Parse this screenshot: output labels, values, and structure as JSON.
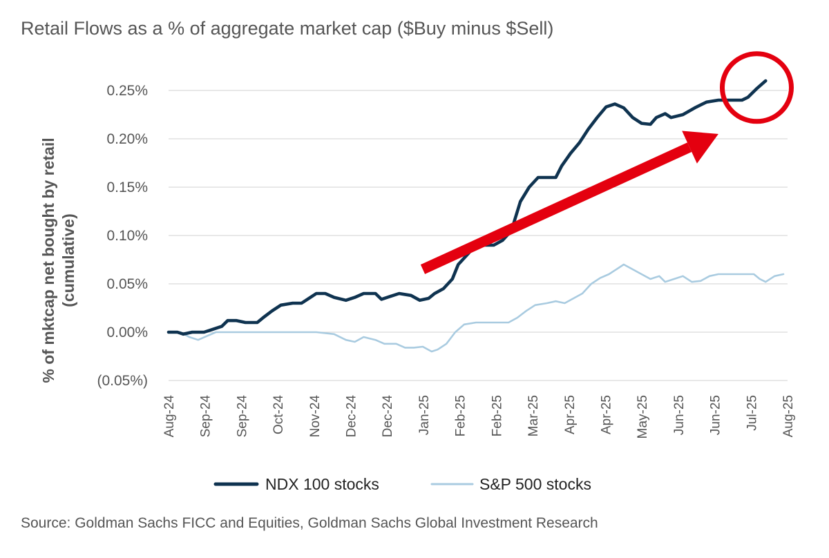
{
  "chart_data": {
    "type": "line",
    "title": "Retail Flows as a % of aggregate market cap ($Buy minus $Sell)",
    "ylabel_line1": "% of mktcap net bought  by retail",
    "ylabel_line2": "(cumulative)",
    "source": "Source: Goldman Sachs FICC and Equities, Goldman Sachs Global Investment Research",
    "ylim": [
      -0.05,
      0.25
    ],
    "yticks": [
      {
        "value": 0.25,
        "label": "0.25%"
      },
      {
        "value": 0.2,
        "label": "0.20%"
      },
      {
        "value": 0.15,
        "label": "0.15%"
      },
      {
        "value": 0.1,
        "label": "0.10%"
      },
      {
        "value": 0.05,
        "label": "0.05%"
      },
      {
        "value": 0.0,
        "label": "0.00%"
      },
      {
        "value": -0.05,
        "label": "(0.05%)"
      }
    ],
    "xtick_labels": [
      "Aug-24",
      "Sep-24",
      "Sep-24",
      "Oct-24",
      "Nov-24",
      "Dec-24",
      "Dec-24",
      "Jan-25",
      "Feb-25",
      "Feb-25",
      "Mar-25",
      "Apr-25",
      "Apr-25",
      "May-25",
      "Jun-25",
      "Jun-25",
      "Jul-25",
      "Aug-25"
    ],
    "x_max": 17,
    "grid": true,
    "legend_position": "bottom",
    "series": [
      {
        "name": "NDX 100 stocks",
        "color": "#0f3350",
        "points": [
          [
            0,
            0.0
          ],
          [
            0.3,
            0.0
          ],
          [
            0.5,
            -0.002
          ],
          [
            0.8,
            0.0
          ],
          [
            1.2,
            0.0
          ],
          [
            1.5,
            0.003
          ],
          [
            1.8,
            0.006
          ],
          [
            2.0,
            0.012
          ],
          [
            2.3,
            0.012
          ],
          [
            2.6,
            0.01
          ],
          [
            3.0,
            0.01
          ],
          [
            3.2,
            0.015
          ],
          [
            3.5,
            0.022
          ],
          [
            3.8,
            0.028
          ],
          [
            4.2,
            0.03
          ],
          [
            4.5,
            0.03
          ],
          [
            4.8,
            0.036
          ],
          [
            5.0,
            0.04
          ],
          [
            5.3,
            0.04
          ],
          [
            5.6,
            0.036
          ],
          [
            6.0,
            0.033
          ],
          [
            6.3,
            0.036
          ],
          [
            6.6,
            0.04
          ],
          [
            7.0,
            0.04
          ],
          [
            7.2,
            0.034
          ],
          [
            7.5,
            0.037
          ],
          [
            7.8,
            0.04
          ],
          [
            8.2,
            0.038
          ],
          [
            8.5,
            0.033
          ],
          [
            8.8,
            0.035
          ],
          [
            9.0,
            0.04
          ],
          [
            9.3,
            0.045
          ],
          [
            9.6,
            0.055
          ],
          [
            9.8,
            0.07
          ],
          [
            10.1,
            0.08
          ],
          [
            10.3,
            0.087
          ],
          [
            10.6,
            0.09
          ],
          [
            11.0,
            0.09
          ],
          [
            11.3,
            0.095
          ],
          [
            11.6,
            0.105
          ],
          [
            11.9,
            0.135
          ],
          [
            12.2,
            0.15
          ],
          [
            12.5,
            0.16
          ],
          [
            12.8,
            0.16
          ],
          [
            13.1,
            0.16
          ],
          [
            13.3,
            0.172
          ],
          [
            13.6,
            0.185
          ],
          [
            13.9,
            0.196
          ],
          [
            14.2,
            0.21
          ],
          [
            14.5,
            0.222
          ],
          [
            14.8,
            0.233
          ],
          [
            15.1,
            0.236
          ],
          [
            15.4,
            0.232
          ],
          [
            15.7,
            0.222
          ],
          [
            16.0,
            0.216
          ],
          [
            16.3,
            0.215
          ],
          [
            16.5,
            0.222
          ],
          [
            16.8,
            0.226
          ],
          [
            17.0,
            0.222
          ],
          [
            17.4,
            0.225
          ],
          [
            17.8,
            0.232
          ],
          [
            18.2,
            0.238
          ],
          [
            18.6,
            0.24
          ],
          [
            19.0,
            0.24
          ],
          [
            19.4,
            0.24
          ],
          [
            19.6,
            0.243
          ],
          [
            19.9,
            0.252
          ],
          [
            20.2,
            0.26
          ]
        ]
      },
      {
        "name": "S&P 500 stocks",
        "color": "#a9cbe0",
        "points": [
          [
            0,
            0.0
          ],
          [
            0.4,
            0.0
          ],
          [
            0.7,
            -0.005
          ],
          [
            1.0,
            -0.008
          ],
          [
            1.3,
            -0.004
          ],
          [
            1.6,
            0.0
          ],
          [
            2.0,
            0.0
          ],
          [
            3.0,
            0.0
          ],
          [
            4.0,
            0.0
          ],
          [
            5.0,
            0.0
          ],
          [
            5.6,
            -0.002
          ],
          [
            6.0,
            -0.008
          ],
          [
            6.3,
            -0.01
          ],
          [
            6.6,
            -0.005
          ],
          [
            7.0,
            -0.008
          ],
          [
            7.3,
            -0.012
          ],
          [
            7.7,
            -0.012
          ],
          [
            8.0,
            -0.016
          ],
          [
            8.3,
            -0.016
          ],
          [
            8.6,
            -0.015
          ],
          [
            8.9,
            -0.02
          ],
          [
            9.1,
            -0.018
          ],
          [
            9.4,
            -0.012
          ],
          [
            9.7,
            0.0
          ],
          [
            10.0,
            0.008
          ],
          [
            10.4,
            0.01
          ],
          [
            11.0,
            0.01
          ],
          [
            11.5,
            0.01
          ],
          [
            11.8,
            0.015
          ],
          [
            12.1,
            0.022
          ],
          [
            12.4,
            0.028
          ],
          [
            12.8,
            0.03
          ],
          [
            13.1,
            0.032
          ],
          [
            13.4,
            0.03
          ],
          [
            13.7,
            0.035
          ],
          [
            14.0,
            0.04
          ],
          [
            14.3,
            0.05
          ],
          [
            14.6,
            0.056
          ],
          [
            14.9,
            0.06
          ],
          [
            15.2,
            0.066
          ],
          [
            15.4,
            0.07
          ],
          [
            15.7,
            0.065
          ],
          [
            16.0,
            0.06
          ],
          [
            16.3,
            0.055
          ],
          [
            16.6,
            0.058
          ],
          [
            16.8,
            0.052
          ],
          [
            17.1,
            0.055
          ],
          [
            17.4,
            0.058
          ],
          [
            17.7,
            0.052
          ],
          [
            18.0,
            0.053
          ],
          [
            18.3,
            0.058
          ],
          [
            18.6,
            0.06
          ],
          [
            19.0,
            0.06
          ],
          [
            19.4,
            0.06
          ],
          [
            19.8,
            0.06
          ],
          [
            20.0,
            0.055
          ],
          [
            20.2,
            0.052
          ],
          [
            20.5,
            0.058
          ],
          [
            20.8,
            0.06
          ]
        ]
      }
    ],
    "annotations": [
      {
        "type": "arrow",
        "color": "#e4000f",
        "from": [
          8.6,
          0.065
        ],
        "to": [
          18.6,
          0.205
        ]
      },
      {
        "type": "circle",
        "color": "#e4000f",
        "center": [
          19.9,
          0.253
        ]
      }
    ]
  }
}
